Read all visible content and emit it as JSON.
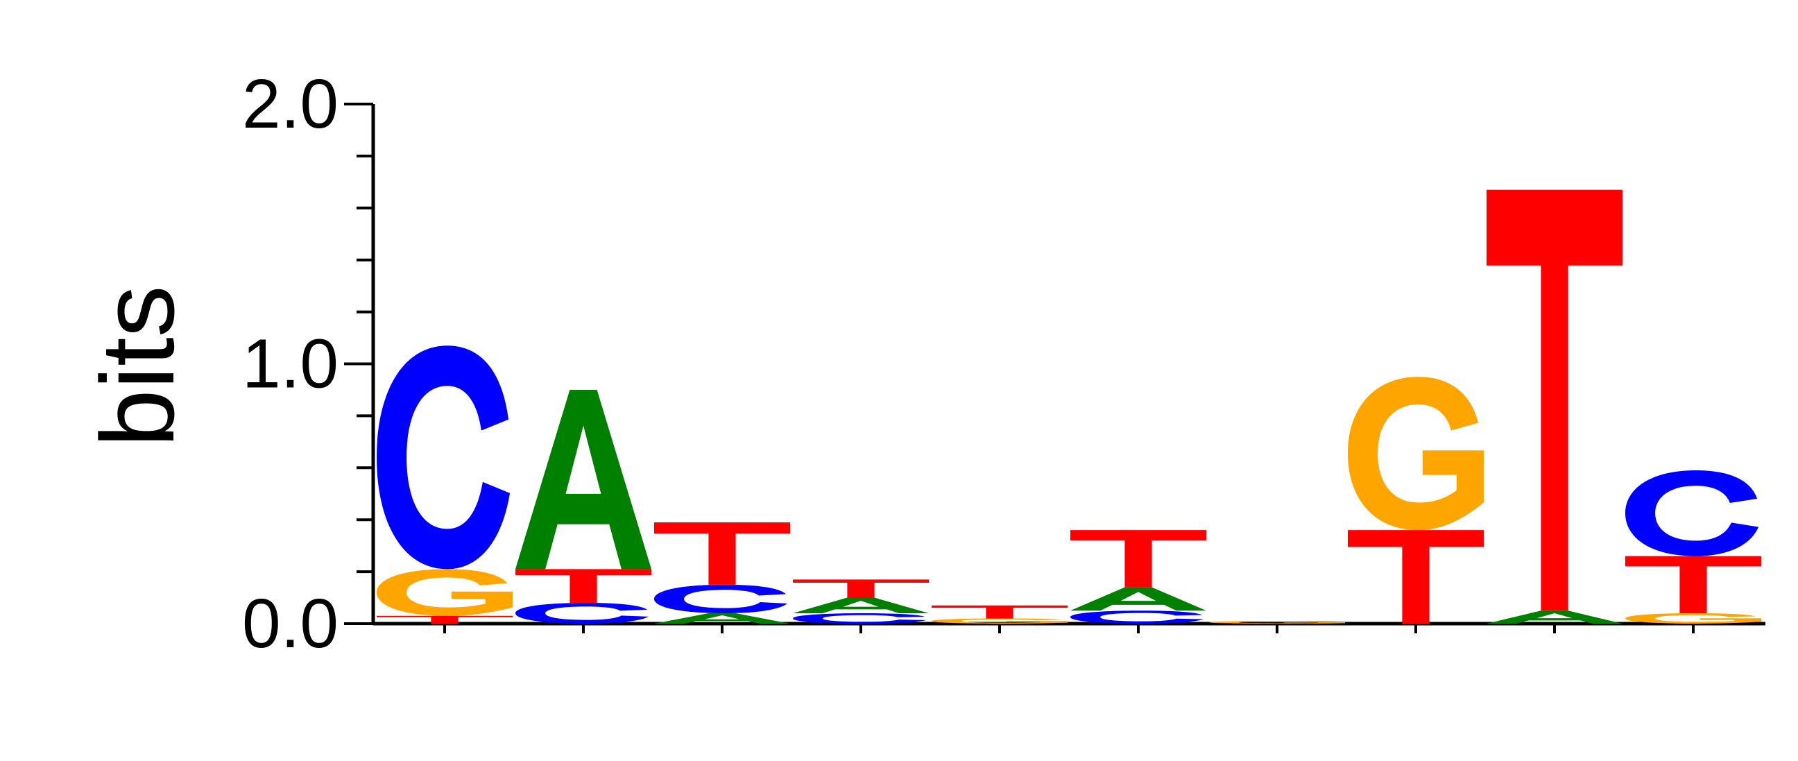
{
  "chart_data": {
    "type": "sequence-logo",
    "ylabel": "bits",
    "ylim": [
      0,
      2
    ],
    "yticks": [
      {
        "value": 0,
        "label": "0.0"
      },
      {
        "value": 1,
        "label": "1.0"
      },
      {
        "value": 2,
        "label": "2.0"
      }
    ],
    "minor_tick_step": 0.2,
    "colors": {
      "A": "#008000",
      "C": "#0000ff",
      "G": "#ffa500",
      "T": "#ff0000"
    },
    "positions": [
      {
        "index": 1,
        "stack": [
          {
            "base": "T",
            "bits": 0.03
          },
          {
            "base": "G",
            "bits": 0.18
          },
          {
            "base": "C",
            "bits": 0.86
          }
        ]
      },
      {
        "index": 2,
        "stack": [
          {
            "base": "C",
            "bits": 0.08
          },
          {
            "base": "T",
            "bits": 0.13
          },
          {
            "base": "A",
            "bits": 0.69
          }
        ]
      },
      {
        "index": 3,
        "stack": [
          {
            "base": "A",
            "bits": 0.04
          },
          {
            "base": "C",
            "bits": 0.11
          },
          {
            "base": "T",
            "bits": 0.24
          }
        ]
      },
      {
        "index": 4,
        "stack": [
          {
            "base": "C",
            "bits": 0.04
          },
          {
            "base": "A",
            "bits": 0.06
          },
          {
            "base": "T",
            "bits": 0.07
          }
        ]
      },
      {
        "index": 5,
        "stack": [
          {
            "base": "G",
            "bits": 0.02
          },
          {
            "base": "T",
            "bits": 0.05
          }
        ]
      },
      {
        "index": 6,
        "stack": [
          {
            "base": "C",
            "bits": 0.05
          },
          {
            "base": "A",
            "bits": 0.09
          },
          {
            "base": "T",
            "bits": 0.22
          }
        ]
      },
      {
        "index": 7,
        "stack": [
          {
            "base": "G",
            "bits": 0.01
          }
        ]
      },
      {
        "index": 8,
        "stack": [
          {
            "base": "T",
            "bits": 0.36
          },
          {
            "base": "G",
            "bits": 0.59
          }
        ]
      },
      {
        "index": 9,
        "stack": [
          {
            "base": "A",
            "bits": 0.05
          },
          {
            "base": "T",
            "bits": 1.62
          }
        ]
      },
      {
        "index": 10,
        "stack": [
          {
            "base": "G",
            "bits": 0.04
          },
          {
            "base": "T",
            "bits": 0.22
          },
          {
            "base": "C",
            "bits": 0.33
          }
        ]
      }
    ]
  }
}
